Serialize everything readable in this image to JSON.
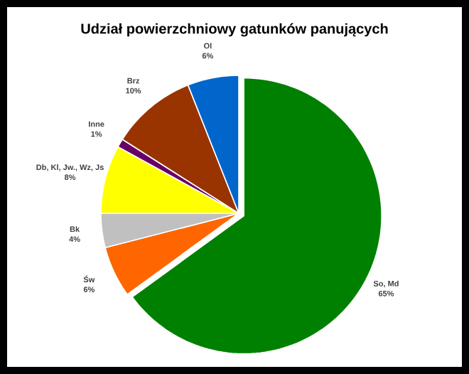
{
  "chart_data": {
    "type": "pie",
    "title": "Udział powierzchniowy gatunków panujących",
    "categories": [
      "So, Md",
      "Św",
      "Bk",
      "Db, Kl, Jw., Wz, Js",
      "Inne",
      "Brz",
      "Ol"
    ],
    "values": [
      65,
      6,
      4,
      8,
      1,
      10,
      6
    ],
    "value_labels": [
      "65%",
      "6%",
      "4%",
      "8%",
      "1%",
      "10%",
      "6%"
    ],
    "colors": [
      "#008000",
      "#ff6600",
      "#c0c0c0",
      "#ffff00",
      "#660066",
      "#993300",
      "#0066cc"
    ]
  }
}
